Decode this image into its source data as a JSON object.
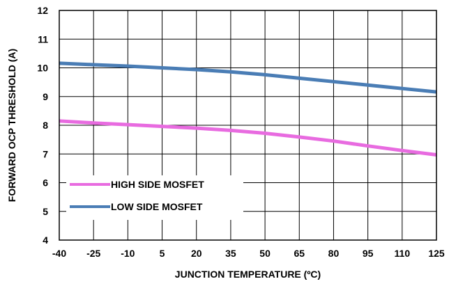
{
  "chart_data": {
    "type": "line",
    "title": "",
    "xlabel": "JUNCTION TEMPERATURE (ºC)",
    "ylabel": "FORWARD OCP THRESHOLD (A)",
    "x": [
      -40,
      -25,
      -10,
      5,
      20,
      35,
      50,
      65,
      80,
      95,
      110,
      125
    ],
    "xlim": [
      -40,
      125
    ],
    "ylim": [
      4,
      12
    ],
    "x_ticks": [
      "-40",
      "-25",
      "-10",
      "5",
      "20",
      "35",
      "50",
      "65",
      "80",
      "95",
      "110",
      "125"
    ],
    "y_ticks": [
      "4",
      "5",
      "6",
      "7",
      "8",
      "9",
      "10",
      "11",
      "12"
    ],
    "grid": true,
    "legend": "inside, lower-left",
    "series": [
      {
        "name": "HIGH SIDE MOSFET",
        "color": "#e86be0",
        "values": [
          8.15,
          8.08,
          8.02,
          7.96,
          7.9,
          7.82,
          7.72,
          7.59,
          7.45,
          7.28,
          7.12,
          6.97
        ]
      },
      {
        "name": "LOW SIDE MOSFET",
        "color": "#4a7db5",
        "values": [
          10.16,
          10.11,
          10.06,
          10.0,
          9.94,
          9.86,
          9.76,
          9.64,
          9.52,
          9.4,
          9.28,
          9.16
        ]
      }
    ]
  }
}
